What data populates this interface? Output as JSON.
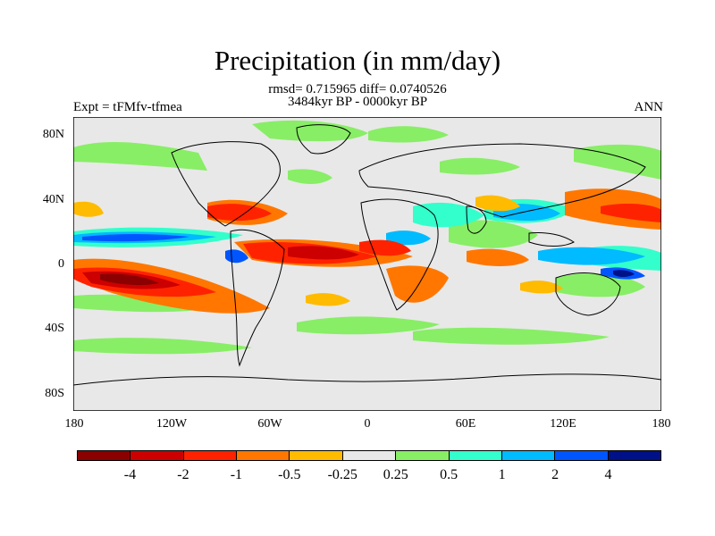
{
  "title": "Precipitation (in mm/day)",
  "stats": "rmsd= 0.715965 diff= 0.0740526",
  "period": "3484kyr BP - 0000kyr BP",
  "experiment": "Expt = tFMfv-tfmea",
  "season": "ANN",
  "y_ticks": [
    "80N",
    "40N",
    "0",
    "40S",
    "80S"
  ],
  "x_ticks": [
    "180",
    "120W",
    "60W",
    "0",
    "60E",
    "120E",
    "180"
  ],
  "colorbar": {
    "colors": [
      "#8b0000",
      "#cc0000",
      "#ff2200",
      "#ff7700",
      "#ffbb00",
      "#e8e8e8",
      "#88ee66",
      "#33ffcc",
      "#00bbff",
      "#0055ff",
      "#001188"
    ],
    "labels": [
      "-4",
      "-2",
      "-1",
      "-0.5",
      "-0.25",
      "0.25",
      "0.5",
      "1",
      "2",
      "4"
    ]
  },
  "palette": {
    "ocean_bg": "#e8e8e8",
    "coast": "#000000"
  }
}
